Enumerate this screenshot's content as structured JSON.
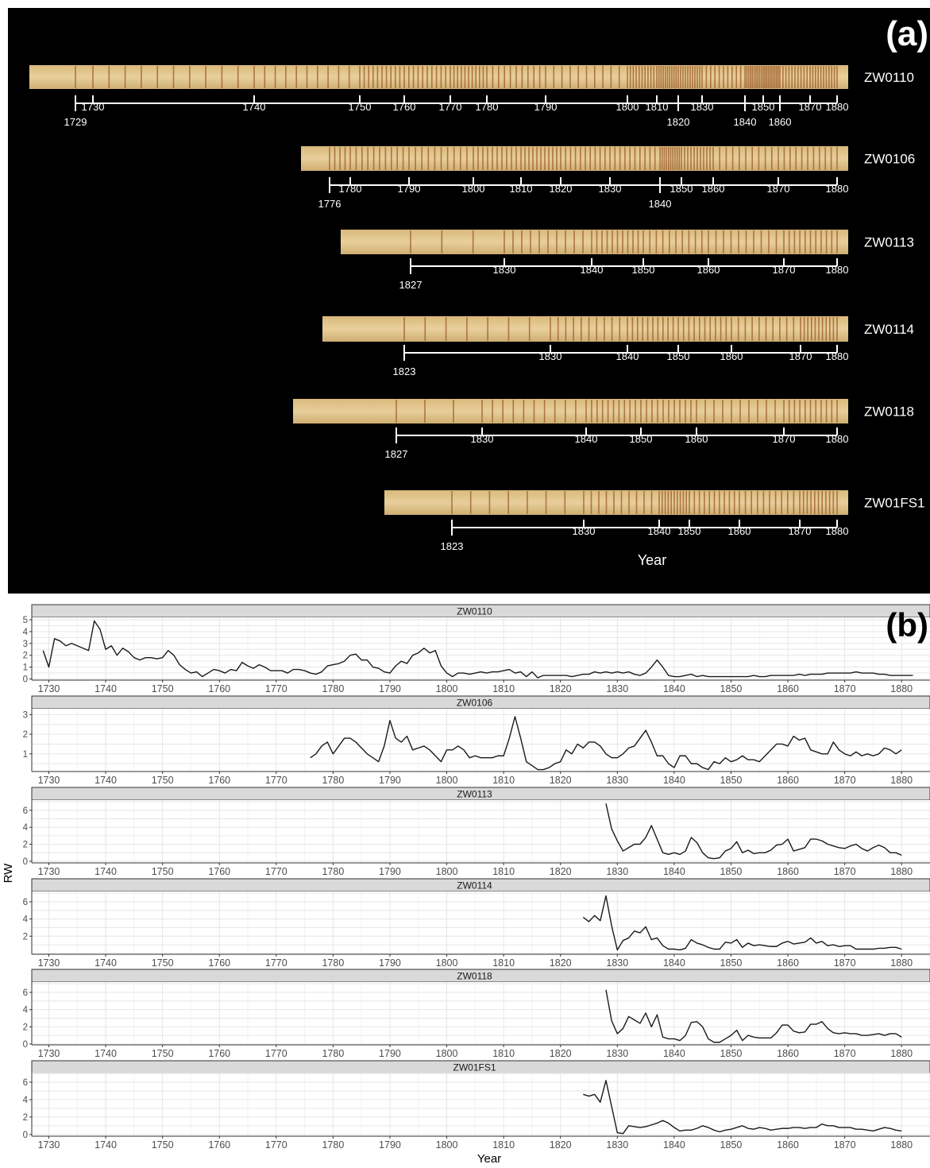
{
  "panel_a": {
    "label": "(a)",
    "xlabel": "Year",
    "samples": [
      {
        "name": "ZW0110",
        "start_year": 1729,
        "end_year": 1880,
        "ticks": [
          1729,
          1730,
          1740,
          1750,
          1760,
          1770,
          1780,
          1790,
          1800,
          1810,
          1820,
          1830,
          1840,
          1850,
          1860,
          1870,
          1880
        ],
        "lower_ticks": [
          1729,
          1820,
          1840,
          1860
        ]
      },
      {
        "name": "ZW0106",
        "start_year": 1776,
        "end_year": 1880,
        "ticks": [
          1776,
          1780,
          1790,
          1800,
          1810,
          1820,
          1830,
          1840,
          1850,
          1860,
          1870,
          1880
        ],
        "lower_ticks": [
          1776,
          1840
        ]
      },
      {
        "name": "ZW0113",
        "start_year": 1827,
        "end_year": 1880,
        "ticks": [
          1827,
          1830,
          1840,
          1850,
          1860,
          1870,
          1880
        ],
        "lower_ticks": [
          1827
        ]
      },
      {
        "name": "ZW0114",
        "start_year": 1823,
        "end_year": 1880,
        "ticks": [
          1823,
          1830,
          1840,
          1850,
          1860,
          1870,
          1880
        ],
        "lower_ticks": [
          1823
        ]
      },
      {
        "name": "ZW0118",
        "start_year": 1827,
        "end_year": 1880,
        "ticks": [
          1827,
          1830,
          1840,
          1850,
          1860,
          1870,
          1880
        ],
        "lower_ticks": [
          1827
        ]
      },
      {
        "name": "ZW01FS1",
        "start_year": 1823,
        "end_year": 1880,
        "ticks": [
          1823,
          1830,
          1840,
          1850,
          1860,
          1870,
          1880
        ],
        "lower_ticks": [
          1823
        ]
      }
    ],
    "colors": {
      "background": "#000000",
      "wood_light": "#e8cf9a",
      "wood_dark": "#9a5a2a",
      "ink": "#ffffff"
    }
  },
  "chart_data": {
    "type": "line",
    "label": "(b)",
    "xlabel": "Year",
    "ylabel": "RW",
    "xlim": [
      1727,
      1885
    ],
    "x_ticks": [
      1730,
      1740,
      1750,
      1760,
      1770,
      1780,
      1790,
      1800,
      1810,
      1820,
      1830,
      1840,
      1850,
      1860,
      1870,
      1880
    ],
    "grid": true,
    "facets": [
      {
        "name": "ZW0110",
        "x_start": 1729,
        "ylim": [
          -0.1,
          5.2
        ],
        "y_ticks": [
          0,
          1,
          2,
          3,
          4,
          5
        ],
        "values": [
          2.4,
          1.0,
          3.4,
          3.2,
          2.8,
          3.0,
          2.8,
          2.6,
          2.4,
          4.9,
          4.2,
          2.5,
          2.8,
          2.0,
          2.6,
          2.3,
          1.8,
          1.6,
          1.8,
          1.8,
          1.7,
          1.8,
          2.4,
          2.0,
          1.2,
          0.8,
          0.5,
          0.6,
          0.2,
          0.5,
          0.8,
          0.7,
          0.5,
          0.8,
          0.7,
          1.4,
          1.1,
          0.9,
          1.2,
          1.0,
          0.7,
          0.7,
          0.7,
          0.5,
          0.8,
          0.8,
          0.7,
          0.5,
          0.4,
          0.6,
          1.1,
          1.2,
          1.3,
          1.5,
          2.0,
          2.1,
          1.6,
          1.6,
          1.0,
          0.9,
          0.6,
          0.5,
          1.1,
          1.5,
          1.3,
          2.0,
          2.2,
          2.6,
          2.2,
          2.4,
          1.1,
          0.5,
          0.2,
          0.5,
          0.5,
          0.4,
          0.5,
          0.6,
          0.5,
          0.6,
          0.6,
          0.7,
          0.8,
          0.5,
          0.6,
          0.2,
          0.6,
          0.1,
          0.3,
          0.3,
          0.3,
          0.3,
          0.3,
          0.2,
          0.3,
          0.4,
          0.4,
          0.6,
          0.5,
          0.6,
          0.5,
          0.6,
          0.5,
          0.6,
          0.4,
          0.3,
          0.5,
          1.0,
          1.6,
          1.0,
          0.3,
          0.2,
          0.2,
          0.3,
          0.4,
          0.2,
          0.3,
          0.2,
          0.2,
          0.2,
          0.2,
          0.2,
          0.2,
          0.2,
          0.2,
          0.3,
          0.2,
          0.2,
          0.3,
          0.3,
          0.3,
          0.3,
          0.3,
          0.4,
          0.3,
          0.4,
          0.4,
          0.4,
          0.5,
          0.5,
          0.5,
          0.5,
          0.5,
          0.6,
          0.5,
          0.5,
          0.5,
          0.4,
          0.4,
          0.3,
          0.3,
          0.3,
          0.3,
          0.3
        ]
      },
      {
        "name": "ZW0106",
        "x_start": 1776,
        "ylim": [
          0.1,
          3.3
        ],
        "y_ticks": [
          1,
          2,
          3
        ],
        "values": [
          0.8,
          1.0,
          1.4,
          1.6,
          1.0,
          1.4,
          1.8,
          1.8,
          1.6,
          1.3,
          1.0,
          0.8,
          0.6,
          1.4,
          2.7,
          1.8,
          1.6,
          1.9,
          1.2,
          1.3,
          1.4,
          1.2,
          0.9,
          0.6,
          1.2,
          1.2,
          1.4,
          1.2,
          0.8,
          0.9,
          0.8,
          0.8,
          0.8,
          0.9,
          0.9,
          1.8,
          2.9,
          1.8,
          0.6,
          0.4,
          0.2,
          0.2,
          0.3,
          0.5,
          0.6,
          1.2,
          1.0,
          1.5,
          1.3,
          1.6,
          1.6,
          1.4,
          1.0,
          0.8,
          0.8,
          1.0,
          1.3,
          1.4,
          1.8,
          2.2,
          1.6,
          0.9,
          0.9,
          0.5,
          0.3,
          0.9,
          0.9,
          0.5,
          0.5,
          0.3,
          0.2,
          0.6,
          0.5,
          0.8,
          0.6,
          0.7,
          0.9,
          0.7,
          0.7,
          0.6,
          0.9,
          1.2,
          1.5,
          1.5,
          1.4,
          1.9,
          1.7,
          1.8,
          1.2,
          1.1,
          1.0,
          1.0,
          1.6,
          1.2,
          1.0,
          0.9,
          1.1,
          0.9,
          1.0,
          0.9,
          1.0,
          1.3,
          1.2,
          1.0,
          1.2
        ]
      },
      {
        "name": "ZW0113",
        "x_start": 1828,
        "ylim": [
          -0.2,
          7.2
        ],
        "y_ticks": [
          0,
          2,
          4,
          6
        ],
        "values": [
          6.8,
          3.8,
          2.4,
          1.2,
          1.6,
          2.0,
          2.0,
          2.8,
          4.2,
          2.6,
          1.0,
          0.8,
          1.0,
          0.8,
          1.2,
          2.8,
          2.2,
          1.0,
          0.4,
          0.3,
          0.4,
          1.2,
          1.5,
          2.3,
          1.0,
          1.3,
          0.9,
          1.0,
          1.0,
          1.3,
          1.9,
          2.0,
          2.6,
          1.2,
          1.4,
          1.6,
          2.6,
          2.6,
          2.4,
          2.0,
          1.8,
          1.6,
          1.5,
          1.8,
          2.0,
          1.5,
          1.2,
          1.6,
          1.9,
          1.6,
          1.0,
          1.0,
          0.7
        ]
      },
      {
        "name": "ZW0114",
        "x_start": 1824,
        "ylim": [
          -0.1,
          7.2
        ],
        "y_ticks": [
          2,
          4,
          6
        ],
        "values": [
          4.2,
          3.7,
          4.4,
          3.8,
          6.7,
          3.2,
          0.4,
          1.5,
          1.8,
          2.6,
          2.4,
          3.1,
          1.6,
          1.8,
          0.9,
          0.5,
          0.5,
          0.4,
          0.6,
          1.6,
          1.2,
          1.0,
          0.7,
          0.5,
          0.5,
          1.3,
          1.2,
          1.6,
          0.7,
          1.2,
          0.9,
          1.0,
          0.9,
          0.8,
          0.8,
          1.2,
          1.4,
          1.1,
          1.2,
          1.3,
          1.8,
          1.2,
          1.4,
          0.9,
          1.0,
          0.8,
          0.9,
          0.9,
          0.5,
          0.5,
          0.5,
          0.5,
          0.6,
          0.6,
          0.7,
          0.7,
          0.5
        ]
      },
      {
        "name": "ZW0118",
        "x_start": 1828,
        "ylim": [
          -0.1,
          7.2
        ],
        "y_ticks": [
          0,
          2,
          4,
          6
        ],
        "values": [
          6.3,
          2.7,
          1.2,
          1.8,
          3.2,
          2.8,
          2.4,
          3.6,
          2.0,
          3.4,
          0.8,
          0.6,
          0.6,
          0.4,
          1.0,
          2.5,
          2.6,
          2.0,
          0.6,
          0.2,
          0.2,
          0.6,
          1.0,
          1.6,
          0.4,
          1.0,
          0.8,
          0.7,
          0.7,
          0.7,
          1.3,
          2.2,
          2.2,
          1.5,
          1.3,
          1.4,
          2.3,
          2.3,
          2.6,
          1.8,
          1.3,
          1.2,
          1.3,
          1.2,
          1.2,
          1.0,
          1.0,
          1.1,
          1.2,
          1.0,
          1.2,
          1.2,
          0.8
        ]
      },
      {
        "name": "ZW01FS1",
        "x_start": 1824,
        "ylim": [
          -0.2,
          7.0
        ],
        "y_ticks": [
          0,
          2,
          4,
          6
        ],
        "values": [
          4.6,
          4.4,
          4.6,
          3.7,
          6.2,
          3.2,
          0.2,
          0.1,
          1.0,
          0.9,
          0.8,
          0.9,
          1.1,
          1.3,
          1.6,
          1.3,
          0.8,
          0.4,
          0.5,
          0.5,
          0.7,
          1.0,
          0.8,
          0.5,
          0.3,
          0.5,
          0.6,
          0.8,
          1.0,
          0.7,
          0.6,
          0.8,
          0.7,
          0.5,
          0.6,
          0.7,
          0.7,
          0.8,
          0.8,
          0.7,
          0.8,
          0.8,
          1.2,
          1.0,
          1.0,
          0.8,
          0.8,
          0.8,
          0.6,
          0.6,
          0.5,
          0.4,
          0.6,
          0.8,
          0.7,
          0.5,
          0.4
        ]
      }
    ],
    "colors": {
      "line": "#1a1a1a",
      "strip": "#d9d9d9",
      "grid_major": "#e6e6e6",
      "grid_minor": "#f3f3f3",
      "axis_text": "#4d4d4d"
    }
  }
}
